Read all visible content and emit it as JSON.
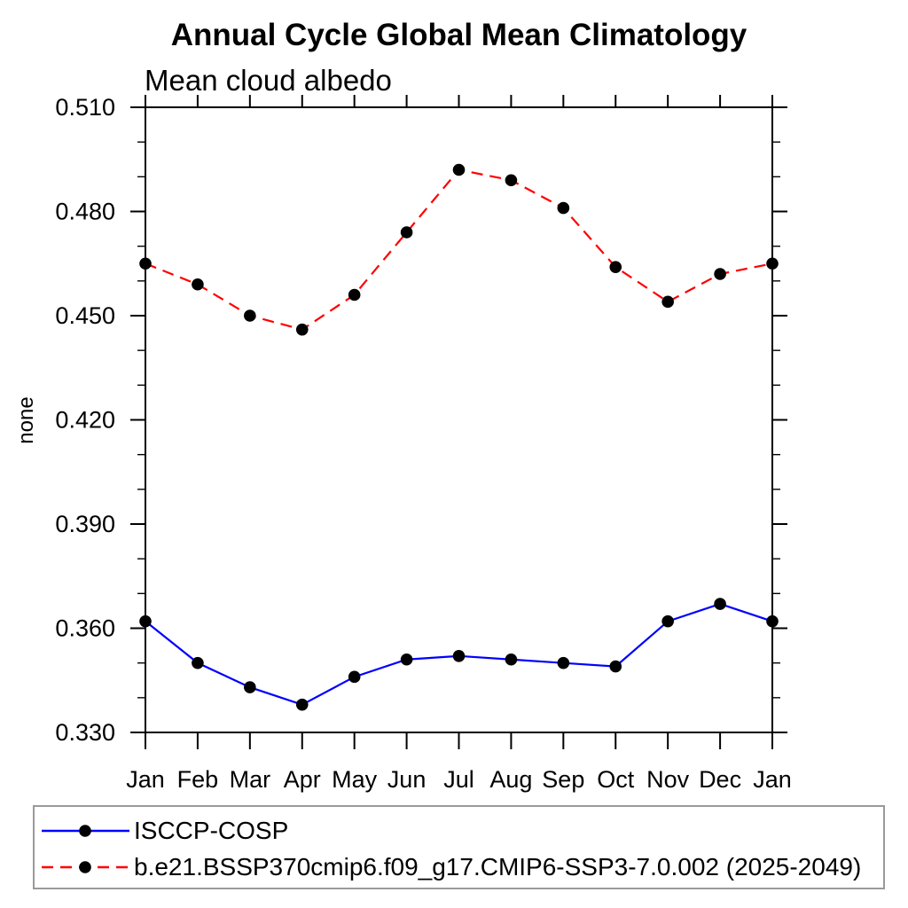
{
  "chart_data": {
    "type": "line",
    "title": "Annual Cycle Global Mean Climatology",
    "subtitle": "Mean cloud albedo",
    "ylabel": "none",
    "xlabel": "",
    "categories": [
      "Jan",
      "Feb",
      "Mar",
      "Apr",
      "May",
      "Jun",
      "Jul",
      "Aug",
      "Sep",
      "Oct",
      "Nov",
      "Dec",
      "Jan"
    ],
    "ylim": [
      0.33,
      0.51
    ],
    "ytick_interval": 0.03,
    "yminor_interval": 0.01,
    "ytick_labels": [
      "0.330",
      "0.360",
      "0.390",
      "0.420",
      "0.450",
      "0.480",
      "0.510"
    ],
    "grid": false,
    "axis_frame": true,
    "axis_color": "#000000",
    "legend_position": "bottom-left",
    "legend_border_color": "#9a9a9a",
    "marker": "filled-circle",
    "marker_color": "#000000",
    "series": [
      {
        "name": "ISCCP-COSP",
        "color": "#0000ff",
        "line_style": "solid",
        "values": [
          0.362,
          0.35,
          0.343,
          0.338,
          0.346,
          0.351,
          0.352,
          0.351,
          0.35,
          0.349,
          0.362,
          0.367,
          0.362
        ]
      },
      {
        "name": "b.e21.BSSP370cmip6.f09_g17.CMIP6-SSP3-7.0.002 (2025-2049)",
        "color": "#ff0000",
        "line_style": "dashed",
        "values": [
          0.465,
          0.459,
          0.45,
          0.446,
          0.456,
          0.474,
          0.492,
          0.489,
          0.481,
          0.464,
          0.454,
          0.462,
          0.465
        ]
      }
    ]
  }
}
